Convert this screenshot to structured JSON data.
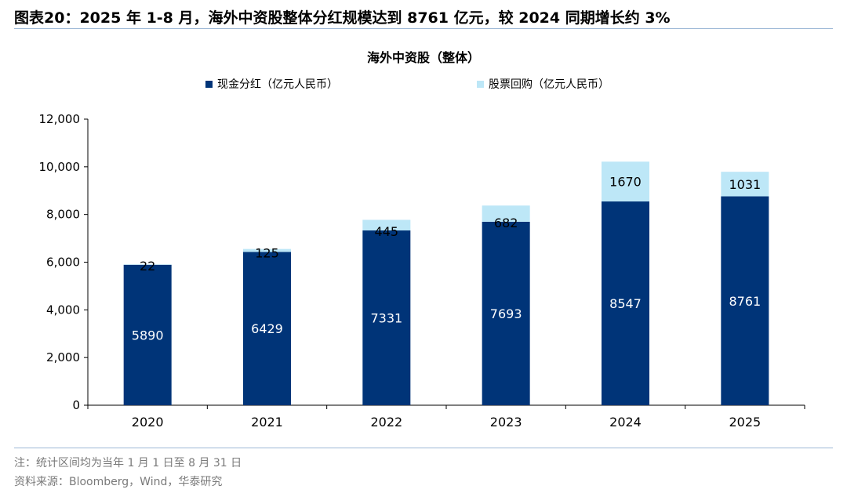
{
  "header": {
    "figure_label": "图表20：",
    "title": "2025 年 1-8 月，海外中资股整体分红规模达到 8761 亿元，较 2024 同期增长约 3%"
  },
  "chart_data": {
    "type": "bar",
    "stacked": true,
    "title": "海外中资股（整体）",
    "categories": [
      "2020",
      "2021",
      "2022",
      "2023",
      "2024",
      "2025"
    ],
    "series": [
      {
        "name": "现金分红（亿元人民币）",
        "values": [
          5890,
          6429,
          7331,
          7693,
          8547,
          8761
        ],
        "color": "#003478"
      },
      {
        "name": "股票回购（亿元人民币）",
        "values": [
          22,
          125,
          445,
          682,
          1670,
          1031
        ],
        "color": "#bde7f7"
      }
    ],
    "ylim": [
      0,
      12000
    ],
    "yticks": [
      0,
      2000,
      4000,
      6000,
      8000,
      10000,
      12000
    ],
    "ytick_labels": [
      "0",
      "2,000",
      "4,000",
      "6,000",
      "8,000",
      "10,000",
      "12,000"
    ],
    "xlabel": "",
    "ylabel": "",
    "grid": false,
    "legend_position": "top"
  },
  "footer": {
    "note": "注：统计区间均为当年 1 月 1 日至 8 月 31 日",
    "source": "资料来源：Bloomberg，Wind，华泰研究"
  }
}
